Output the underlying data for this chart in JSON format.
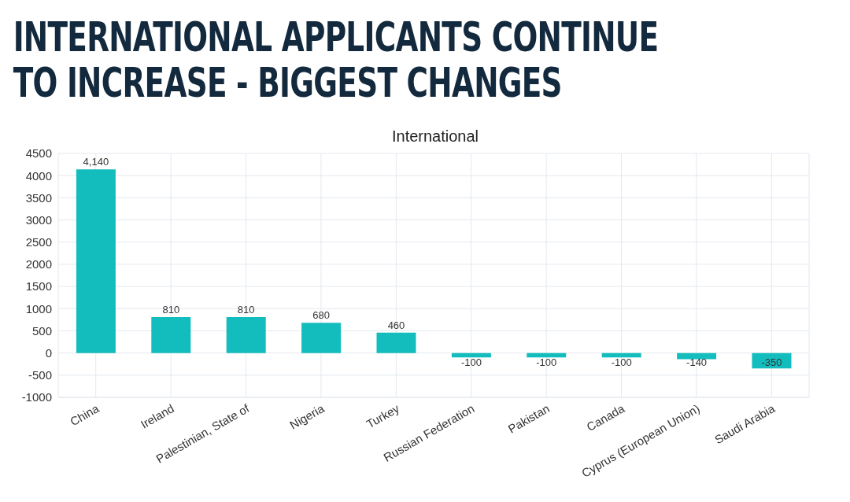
{
  "chart_data": {
    "type": "bar",
    "title": "INTERNATIONAL APPLICANTS CONTINUE TO INCREASE - BIGGEST CHANGES",
    "subtitle": "International",
    "categories": [
      "China",
      "Ireland",
      "Palestinian, State of",
      "Nigeria",
      "Turkey",
      "Russian Federation",
      "Pakistan",
      "Canada",
      "Cyprus (European Union)",
      "Saudi Arabia"
    ],
    "values": [
      4140,
      810,
      810,
      680,
      460,
      -100,
      -100,
      -100,
      -140,
      -350
    ],
    "value_labels": [
      "4,140",
      "810",
      "810",
      "680",
      "460",
      "-100",
      "-100",
      "-100",
      "-140",
      "-350"
    ],
    "color": "#14bdbd",
    "ylim": [
      -1000,
      4500
    ],
    "yticks": [
      -1000,
      -500,
      0,
      500,
      1000,
      1500,
      2000,
      2500,
      3000,
      3500,
      4000,
      4500
    ],
    "grid": true,
    "legend": false
  }
}
